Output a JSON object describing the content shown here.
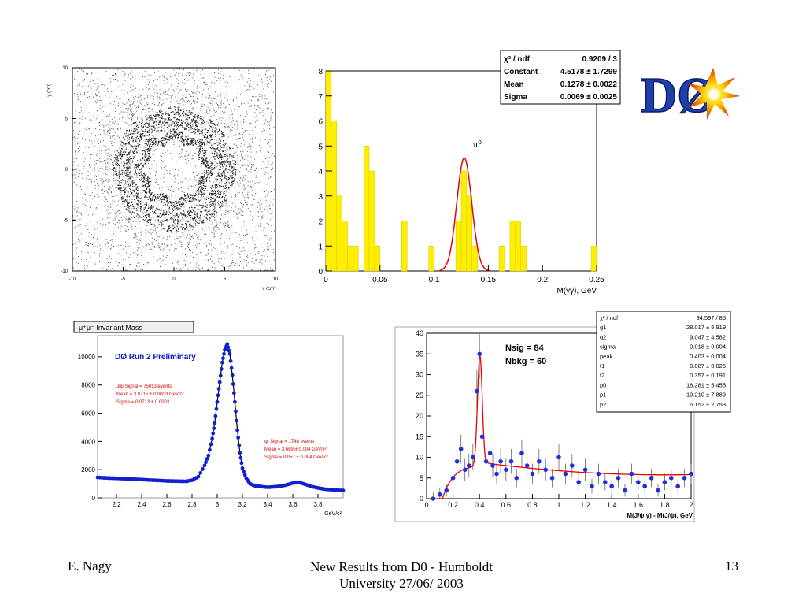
{
  "footer": {
    "author": "E. Nagy",
    "title_line1": "New Results from D0 - Humboldt",
    "title_line2": "University  27/06/ 2003",
    "page_number": "13"
  },
  "logo": {
    "text": "DØ"
  },
  "chart_data": [
    {
      "id": "scatter_xy",
      "type": "scatter",
      "xlabel": "x (cm)",
      "ylabel": "y (cm)",
      "xlim": [
        -10,
        10
      ],
      "ylim": [
        -10,
        10
      ],
      "xticks": [
        "-10",
        "-5",
        "0",
        "5",
        "10"
      ],
      "yticks": [
        "-10",
        "-5",
        "0",
        "5",
        "10"
      ]
    },
    {
      "id": "pi0_hist",
      "type": "bar",
      "xlabel": "M(γγ), GeV",
      "xlim": [
        0,
        0.25
      ],
      "ylim": [
        0,
        8
      ],
      "xticks": [
        "0",
        "0.05",
        "0.1",
        "0.15",
        "0.2",
        "0.25"
      ],
      "yticks": [
        "0",
        "1",
        "2",
        "3",
        "4",
        "5",
        "6",
        "7",
        "8"
      ],
      "annotation": "π⁰",
      "bin_width": 0.005,
      "values": [
        8,
        6,
        3,
        2,
        1,
        1,
        0,
        5,
        4,
        1,
        0,
        0,
        0,
        0,
        2,
        0,
        0,
        0,
        0,
        1,
        0,
        0,
        0,
        0,
        2,
        4,
        3,
        1,
        0,
        0,
        0,
        0,
        1,
        0,
        2,
        2,
        1,
        0,
        0,
        0,
        0,
        0,
        0,
        0,
        0,
        0,
        0,
        0,
        0,
        1
      ],
      "fit": {
        "constant": 4.5178,
        "mean": 0.1278,
        "sigma": 0.0069
      },
      "stats": [
        {
          "label": "χ² / ndf",
          "value": "0.9209 / 3"
        },
        {
          "label": "Constant",
          "value": "4.5178 ± 1.7299"
        },
        {
          "label": "Mean",
          "value": "0.1278 ± 0.0022"
        },
        {
          "label": "Sigma",
          "value": "0.0069 ± 0.0025"
        }
      ]
    },
    {
      "id": "jpsi_mass",
      "type": "scatter",
      "title": "μ⁺μ⁻ Invariant Mass",
      "subtitle": "DØ Run 2 Preliminary",
      "xlabel": "GeV/c²",
      "xlim": [
        2.05,
        4.0
      ],
      "ylim": [
        0,
        11500
      ],
      "xticks": [
        "2.2",
        "2.4",
        "2.6",
        "2.8",
        "3",
        "3.2",
        "3.4",
        "3.6",
        "3.8"
      ],
      "yticks": [
        "0",
        "2000",
        "4000",
        "6000",
        "8000",
        "10000"
      ],
      "annotations_left": [
        "J/ψ Signal = 75013 events",
        "Mean = 3.0715 ± 0.0003 GeV/c²",
        "Sigma = 0.0713 ± 0.0003"
      ],
      "annotations_right": [
        "ψ' Signal = 1748 events",
        "Mean = 3.669 ± 0.004 GeV/c²",
        "Sigma = 0.057 ± 0.004 GeV/c²"
      ],
      "x": [
        2.05,
        2.1,
        2.15,
        2.2,
        2.25,
        2.3,
        2.35,
        2.4,
        2.45,
        2.5,
        2.55,
        2.6,
        2.65,
        2.7,
        2.75,
        2.8,
        2.85,
        2.9,
        2.93,
        2.96,
        2.98,
        3.0,
        3.02,
        3.04,
        3.06,
        3.08,
        3.1,
        3.12,
        3.14,
        3.16,
        3.18,
        3.2,
        3.23,
        3.26,
        3.3,
        3.35,
        3.4,
        3.45,
        3.5,
        3.55,
        3.6,
        3.65,
        3.7,
        3.75,
        3.8,
        3.85,
        3.9,
        3.95,
        4.0
      ],
      "values": [
        1450,
        1420,
        1400,
        1380,
        1360,
        1340,
        1320,
        1300,
        1270,
        1250,
        1230,
        1200,
        1190,
        1180,
        1170,
        1250,
        1500,
        2300,
        3000,
        4200,
        5300,
        6800,
        8200,
        9600,
        10500,
        10900,
        10200,
        8700,
        6800,
        4800,
        3200,
        2100,
        1400,
        1000,
        850,
        800,
        750,
        780,
        820,
        920,
        1050,
        1100,
        950,
        800,
        700,
        620,
        580,
        540,
        520
      ]
    },
    {
      "id": "chic_diff",
      "type": "scatter",
      "xlabel": "M(J/ψ γ) - M(J/ψ), GeV",
      "xlim": [
        0,
        2
      ],
      "ylim": [
        0,
        40
      ],
      "xticks": [
        "0",
        "0.2",
        "0.4",
        "0.6",
        "0.8",
        "1",
        "1.2",
        "1.4",
        "1.6",
        "1.8",
        "2"
      ],
      "yticks": [
        "0",
        "5",
        "10",
        "15",
        "20",
        "25",
        "30",
        "35",
        "40"
      ],
      "annotations": [
        "Nsig = 84",
        "Nbkg = 60"
      ],
      "x": [
        0.05,
        0.1,
        0.15,
        0.2,
        0.23,
        0.26,
        0.29,
        0.32,
        0.35,
        0.38,
        0.4,
        0.42,
        0.45,
        0.48,
        0.5,
        0.53,
        0.56,
        0.6,
        0.64,
        0.68,
        0.72,
        0.76,
        0.8,
        0.85,
        0.9,
        0.95,
        1.0,
        1.05,
        1.1,
        1.15,
        1.2,
        1.25,
        1.3,
        1.35,
        1.4,
        1.45,
        1.5,
        1.55,
        1.6,
        1.65,
        1.7,
        1.75,
        1.8,
        1.85,
        1.9,
        1.95,
        2.0
      ],
      "values": [
        0,
        1,
        2,
        5,
        9,
        12,
        7,
        8,
        10,
        26,
        35,
        15,
        9,
        11,
        8,
        6,
        9,
        7,
        9,
        5,
        11,
        8,
        6,
        9,
        7,
        5,
        10,
        6,
        8,
        4,
        7,
        3,
        6,
        4,
        3,
        5,
        2,
        6,
        4,
        3,
        5,
        2,
        4,
        5,
        3,
        5,
        6
      ],
      "stats": [
        {
          "label": "χ² / ndf",
          "value": "94.597 / 85"
        },
        {
          "label": "g1",
          "value": "28.017 ± 5.919"
        },
        {
          "label": "g2",
          "value": "9.047 ± 4.582"
        },
        {
          "label": "sigma",
          "value": "0.018 ± 0.004"
        },
        {
          "label": "peak",
          "value": "0.403 ± 0.004"
        },
        {
          "label": "t1",
          "value": "0.087 ± 0.025"
        },
        {
          "label": "t2",
          "value": "0.357 ± 0.191"
        },
        {
          "label": "p0",
          "value": "18.281 ± 5.455"
        },
        {
          "label": "p1",
          "value": "-19.210 ± 7.889"
        },
        {
          "label": "p2",
          "value": "6.152 ± 2.753"
        }
      ]
    }
  ]
}
